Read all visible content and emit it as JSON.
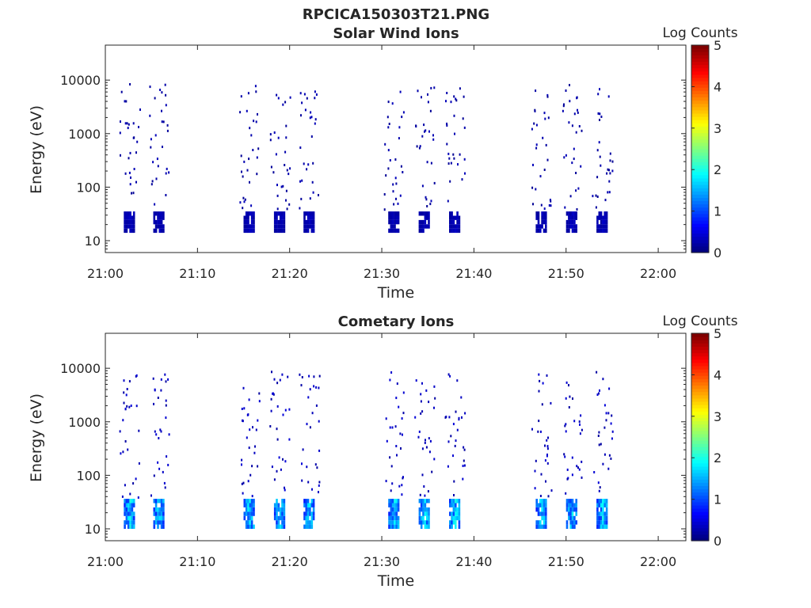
{
  "figure_title": "RPCICA150303T21.PNG",
  "colorbar": {
    "label": "Log Counts",
    "ticks": [
      "0",
      "1",
      "2",
      "3",
      "4",
      "5"
    ],
    "range": [
      0,
      5
    ],
    "colormap": "jet"
  },
  "chart_data": [
    {
      "type": "heatmap",
      "title": "Solar Wind Ions",
      "xlabel": "Time",
      "ylabel": "Energy (eV)",
      "yscale": "log",
      "ylim": [
        6,
        45000
      ],
      "xlim": [
        "21:00",
        "22:03"
      ],
      "xticks": [
        "21:00",
        "21:10",
        "21:20",
        "21:30",
        "21:40",
        "21:50",
        "22:00"
      ],
      "yticks": [
        "10",
        "100",
        "1000",
        "10000"
      ],
      "bursts_min": [
        2.6,
        5.8,
        15.6,
        18.9,
        22.1,
        31.3,
        34.6,
        37.9,
        47.3,
        50.6,
        53.9
      ],
      "low_energy_band_eV": [
        14,
        30
      ],
      "low_energy_log_counts": 0.3,
      "high_energy_log_counts": 0.2
    },
    {
      "type": "heatmap",
      "title": "Cometary Ions",
      "xlabel": "Time",
      "ylabel": "Energy (eV)",
      "yscale": "log",
      "ylim": [
        6,
        45000
      ],
      "xlim": [
        "21:00",
        "22:03"
      ],
      "xticks": [
        "21:00",
        "21:10",
        "21:20",
        "21:30",
        "21:40",
        "21:50",
        "22:00"
      ],
      "yticks": [
        "10",
        "100",
        "1000",
        "10000"
      ],
      "bursts_min": [
        2.6,
        5.8,
        15.6,
        18.9,
        22.1,
        31.3,
        34.6,
        37.9,
        47.3,
        50.6,
        53.9
      ],
      "low_energy_band_eV": [
        10,
        35
      ],
      "low_energy_log_counts": 1.7,
      "high_energy_log_counts": 0.3
    }
  ]
}
